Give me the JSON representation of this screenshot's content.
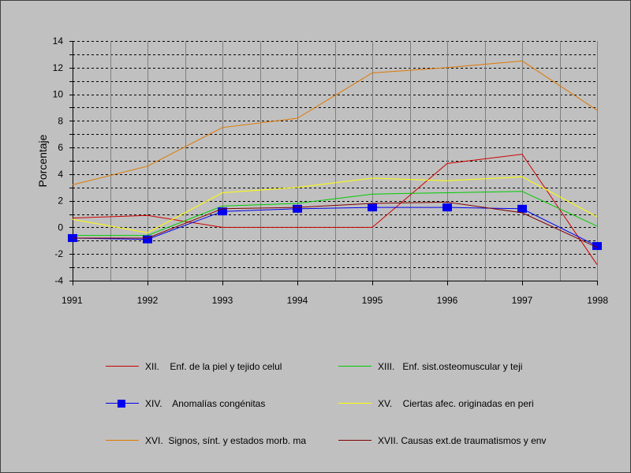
{
  "chart_data": {
    "type": "line",
    "title": "",
    "xlabel": "",
    "ylabel": "Porcentaje",
    "x": [
      "1991",
      "1992",
      "1993",
      "1994",
      "1995",
      "1996",
      "1997",
      "1998"
    ],
    "ylim": [
      -4,
      14
    ],
    "yticks": [
      "-4",
      "-2",
      "0",
      "2",
      "4",
      "6",
      "8",
      "10",
      "12",
      "14"
    ],
    "grid": true,
    "legend_position": "bottom",
    "series": [
      {
        "name": "XII.    Enf. de la piel y tejido celul",
        "color": "#cc0000",
        "marker": "none",
        "values": [
          0.7,
          0.9,
          0.0,
          0.0,
          0.0,
          4.8,
          5.5,
          -2.8
        ]
      },
      {
        "name": "XIII.   Enf. sist.osteomuscular y teji",
        "color": "#00cc00",
        "marker": "none",
        "values": [
          -0.6,
          -0.6,
          1.6,
          1.8,
          2.5,
          2.6,
          2.7,
          0.1
        ]
      },
      {
        "name": "XIV.    Anomalías congénitas",
        "color": "#0000ee",
        "marker": "square",
        "values": [
          -0.8,
          -0.9,
          1.2,
          1.4,
          1.5,
          1.5,
          1.4,
          -1.4
        ]
      },
      {
        "name": "XV.    Ciertas afec. originadas en peri",
        "color": "#ffff00",
        "marker": "none",
        "values": [
          0.6,
          -0.4,
          2.6,
          3.0,
          3.7,
          3.5,
          3.8,
          0.8
        ]
      },
      {
        "name": "XVI.  Signos, sínt. y estados morb. ma",
        "color": "#e07800",
        "marker": "none",
        "values": [
          3.2,
          4.6,
          7.5,
          8.2,
          11.6,
          12.0,
          12.5,
          8.8
        ]
      },
      {
        "name": "XVII. Causas ext.de traumatismos y env",
        "color": "#800000",
        "marker": "none",
        "values": [
          -0.8,
          -0.8,
          1.4,
          1.5,
          1.8,
          1.9,
          1.1,
          -1.5
        ]
      }
    ]
  }
}
